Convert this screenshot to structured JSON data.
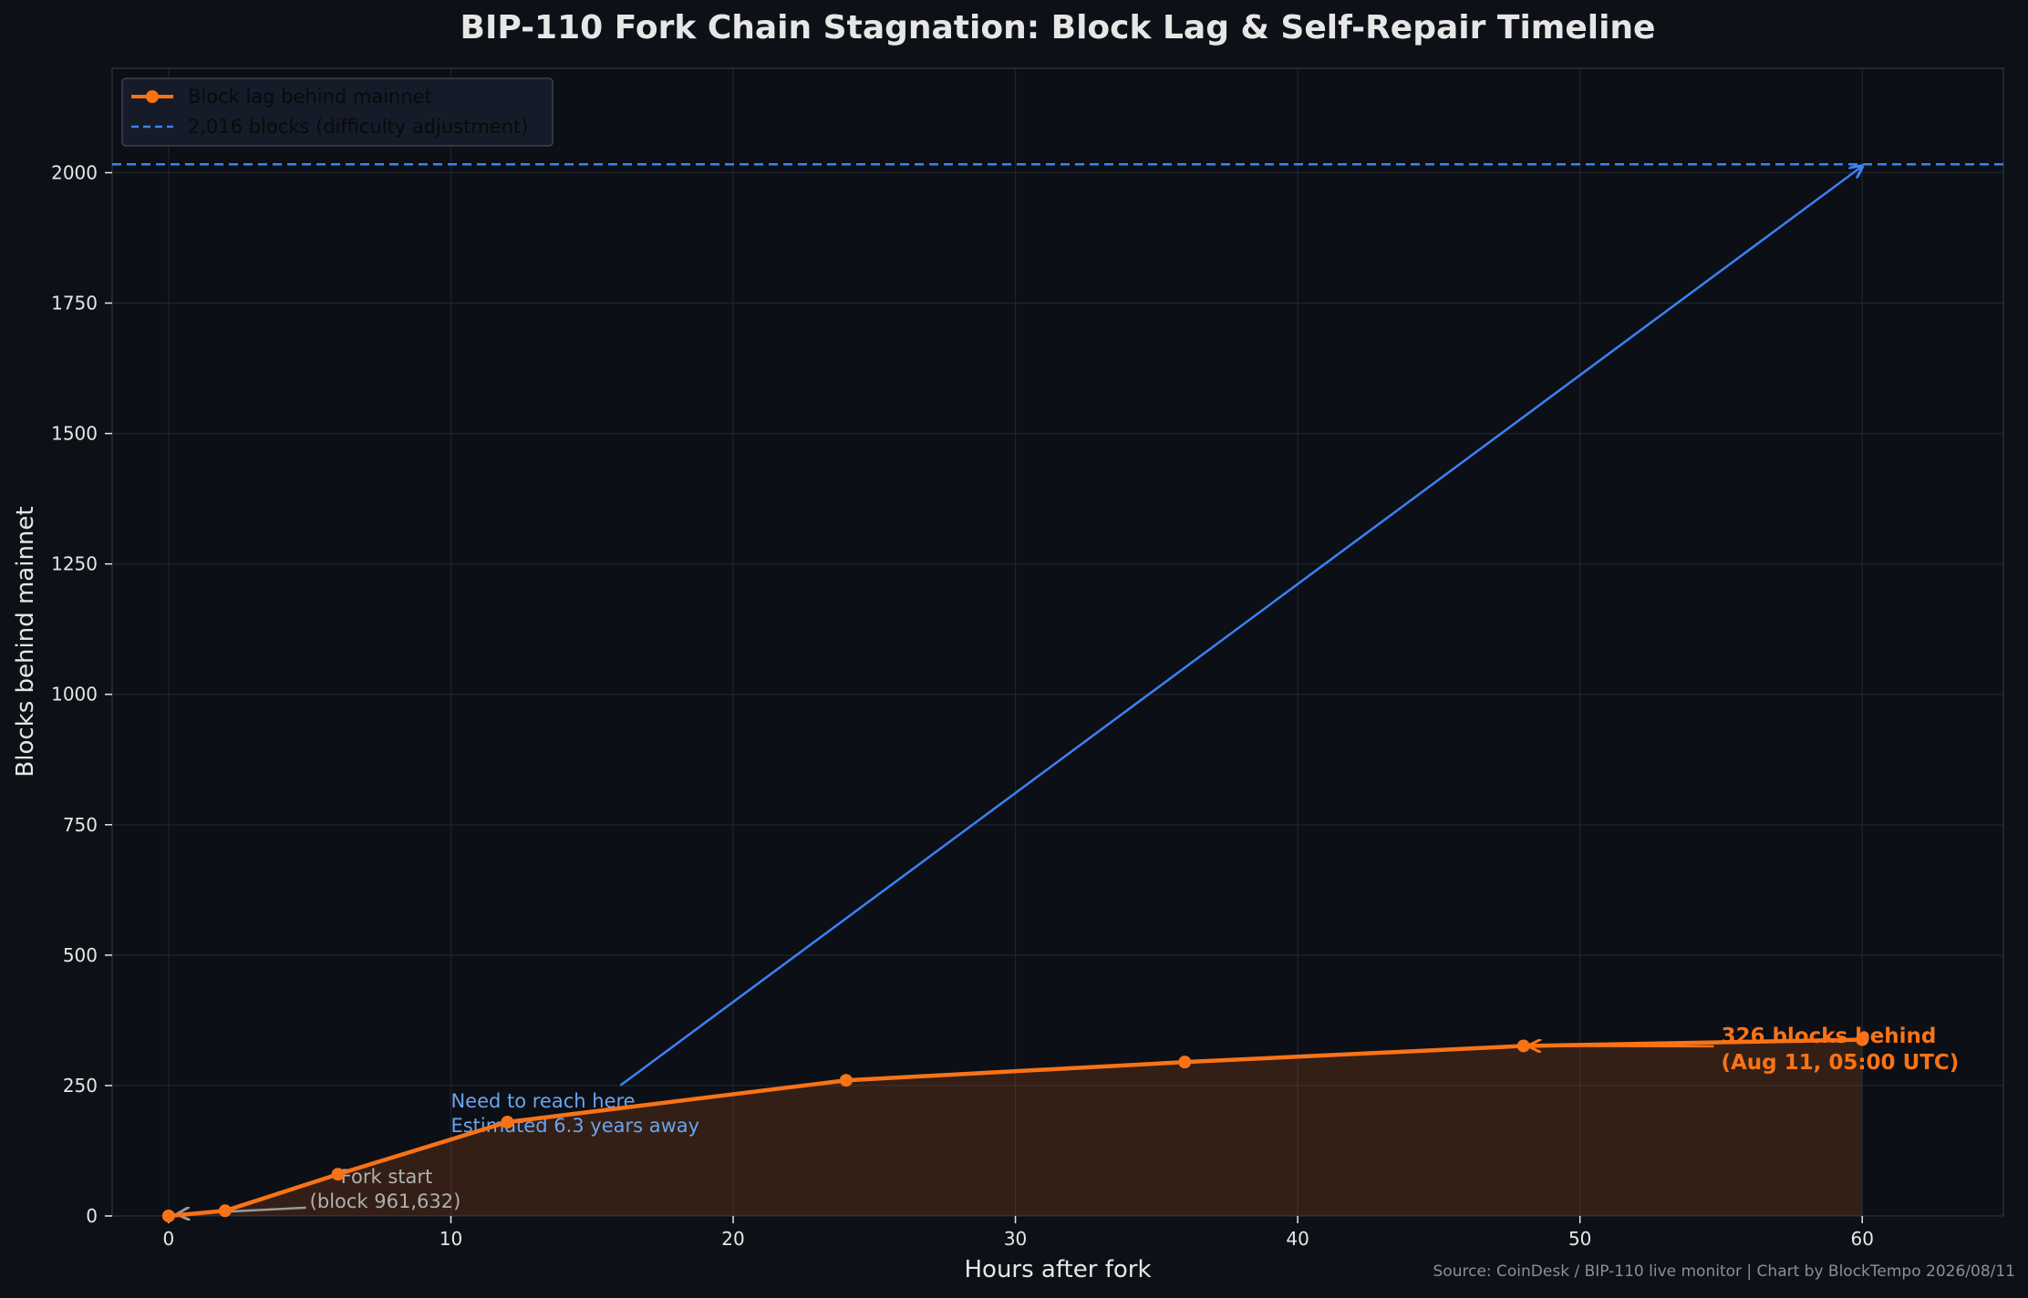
{
  "chart_data": {
    "type": "line",
    "title": "BIP-110 Fork Chain Stagnation: Block Lag & Self-Repair Timeline",
    "xlabel": "Hours after fork",
    "ylabel": "Blocks behind mainnet",
    "xlim": [
      -2,
      65
    ],
    "ylim": [
      0,
      2200
    ],
    "xticks": [
      0,
      10,
      20,
      30,
      40,
      50,
      60
    ],
    "yticks": [
      0,
      250,
      500,
      750,
      1000,
      1250,
      1500,
      1750,
      2000
    ],
    "grid": true,
    "legend_placement": "top-left",
    "series": [
      {
        "name": "Block lag behind mainnet",
        "color": "#f97316",
        "x": [
          0,
          2,
          6,
          12,
          24,
          36,
          48,
          60
        ],
        "y": [
          0,
          10,
          80,
          180,
          260,
          295,
          326,
          338
        ]
      }
    ],
    "reference_lines": [
      {
        "name": "2,016 blocks (difficulty adjustment)",
        "y": 2016,
        "color": "#3b82f6",
        "style": "dashed"
      }
    ],
    "annotations": [
      {
        "lines": [
          "Fork start",
          "(block 961,632)"
        ],
        "color": "#b0b0b0",
        "text_at": [
          5,
          25
        ],
        "points_to": [
          0,
          0
        ]
      },
      {
        "lines": [
          "Need to reach here",
          "Estimated 6.3 years away"
        ],
        "color": "#6aa5ee",
        "text_at": [
          10,
          175
        ],
        "arrow_from": [
          16,
          250
        ],
        "points_to": [
          60,
          2016
        ]
      },
      {
        "lines": [
          "326 blocks behind",
          "(Aug 11, 05:00 UTC)"
        ],
        "color": "#f97316",
        "text_at": [
          55,
          320
        ],
        "points_to": [
          48,
          326
        ]
      }
    ],
    "source_note": "Source: CoinDesk / BIP-110 live monitor | Chart by BlockTempo 2026/08/11"
  }
}
